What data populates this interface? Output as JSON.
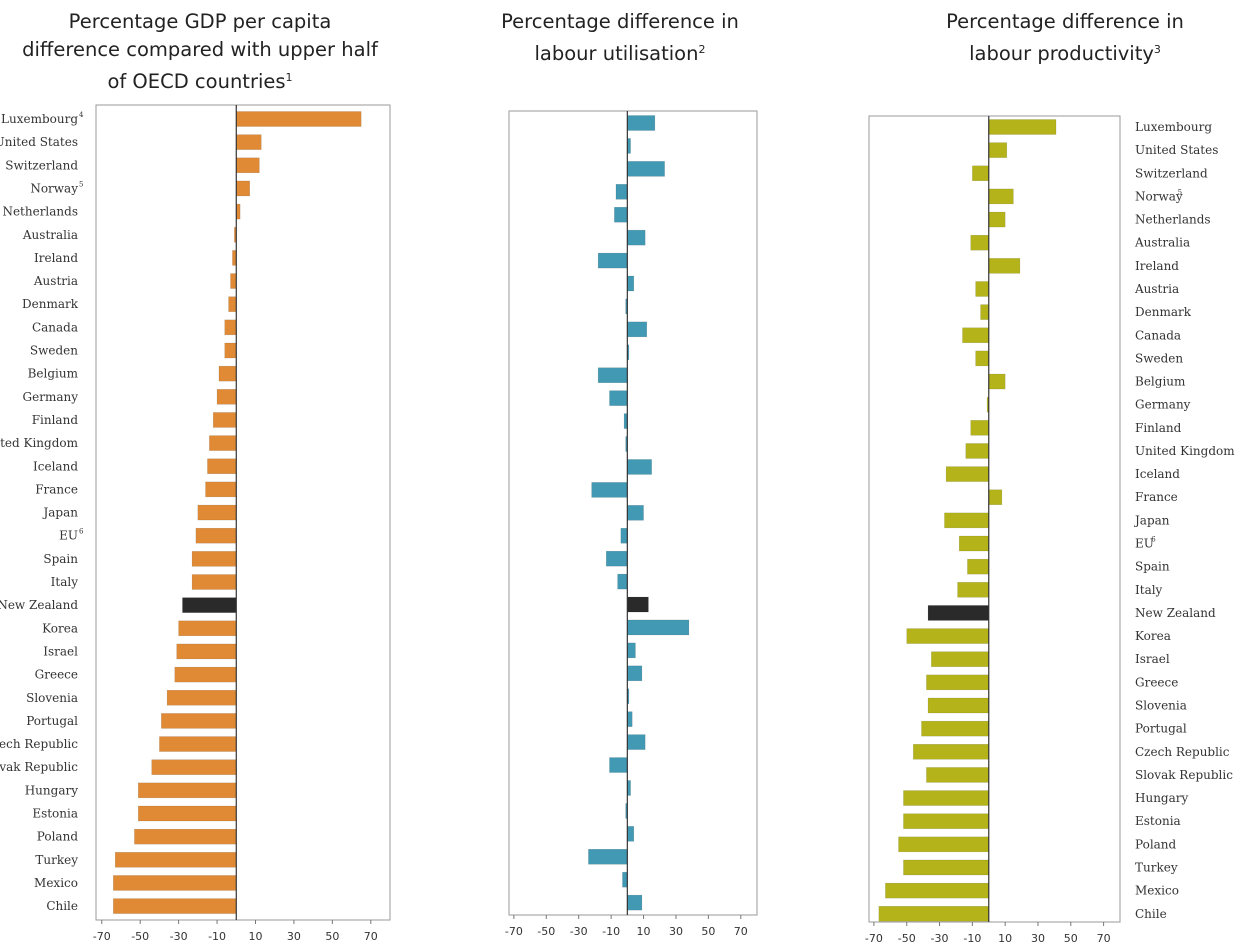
{
  "chart_data": [
    {
      "type": "bar",
      "title": "Percentage GDP per capita difference compared with upper half of OECD countries",
      "title_lines": [
        "Percentage GDP per capita",
        "difference compared with upper half",
        "of OECD countries"
      ],
      "title_note": "1",
      "categories": [
        "Luxembourg",
        "United States",
        "Switzerland",
        "Norway",
        "Netherlands",
        "Australia",
        "Ireland",
        "Austria",
        "Denmark",
        "Canada",
        "Sweden",
        "Belgium",
        "Germany",
        "Finland",
        "United Kingdom",
        "Iceland",
        "France",
        "Japan",
        "EU",
        "Spain",
        "Italy",
        "New Zealand",
        "Korea",
        "Israel",
        "Greece",
        "Slovenia",
        "Portugal",
        "Czech Republic",
        "Slovak Republic",
        "Hungary",
        "Estonia",
        "Poland",
        "Turkey",
        "Mexico",
        "Chile"
      ],
      "category_notes": {
        "Luxembourg": "4",
        "Norway": "5",
        "EU": "6"
      },
      "values": [
        65,
        13,
        12,
        7,
        2,
        -1,
        -2,
        -3,
        -4,
        -6,
        -6,
        -9,
        -10,
        -12,
        -14,
        -15,
        -16,
        -20,
        -21,
        -23,
        -23,
        -28,
        -30,
        -31,
        -32,
        -36,
        -39,
        -40,
        -44,
        -51,
        -51,
        -53,
        -63,
        -64,
        -64
      ],
      "highlight": "New Zealand",
      "xticks": [
        -70,
        -50,
        -30,
        -10,
        10,
        30,
        50,
        70
      ],
      "xlim": [
        -73,
        80
      ],
      "color": "#e08a35",
      "highlight_color": "#2a2a2a"
    },
    {
      "type": "bar",
      "title": "Percentage difference in labour utilisation",
      "title_lines": [
        "Percentage difference in",
        "labour utilisation"
      ],
      "title_note": "2",
      "categories": [
        "Luxembourg",
        "United States",
        "Switzerland",
        "Norway",
        "Netherlands",
        "Australia",
        "Ireland",
        "Austria",
        "Denmark",
        "Canada",
        "Sweden",
        "Belgium",
        "Germany",
        "Finland",
        "United Kingdom",
        "Iceland",
        "France",
        "Japan",
        "EU",
        "Spain",
        "Italy",
        "New Zealand",
        "Korea",
        "Israel",
        "Greece",
        "Slovenia",
        "Portugal",
        "Czech Republic",
        "Slovak Republic",
        "Hungary",
        "Estonia",
        "Poland",
        "Turkey",
        "Mexico",
        "Chile"
      ],
      "values": [
        17,
        2,
        23,
        -7,
        -8,
        11,
        -18,
        4,
        -1,
        12,
        1,
        -18,
        -11,
        -2,
        -1,
        15,
        -22,
        10,
        -4,
        -13,
        -6,
        13,
        38,
        5,
        9,
        1,
        3,
        11,
        -11,
        2,
        -1,
        4,
        -24,
        -3,
        9
      ],
      "highlight": "New Zealand",
      "xticks": [
        -70,
        -50,
        -30,
        -10,
        10,
        30,
        50,
        70
      ],
      "xlim": [
        -73,
        80
      ],
      "color": "#4199b4",
      "highlight_color": "#2a2a2a"
    },
    {
      "type": "bar",
      "title": "Percentage difference in labour productivity",
      "title_lines": [
        "Percentage difference in",
        "labour productivity"
      ],
      "title_note": "3",
      "categories": [
        "Luxembourg",
        "United States",
        "Switzerland",
        "Norway",
        "Netherlands",
        "Australia",
        "Ireland",
        "Austria",
        "Denmark",
        "Canada",
        "Sweden",
        "Belgium",
        "Germany",
        "Finland",
        "United Kingdom",
        "Iceland",
        "France",
        "Japan",
        "EU",
        "Spain",
        "Italy",
        "New Zealand",
        "Korea",
        "Israel",
        "Greece",
        "Slovenia",
        "Portugal",
        "Czech Republic",
        "Slovak Republic",
        "Hungary",
        "Estonia",
        "Poland",
        "Turkey",
        "Mexico",
        "Chile"
      ],
      "category_notes": {
        "Norway": "5",
        "EU": "6"
      },
      "values": [
        41,
        11,
        -10,
        15,
        10,
        -11,
        19,
        -8,
        -5,
        -16,
        -8,
        10,
        -1,
        -11,
        -14,
        -26,
        8,
        -27,
        -18,
        -13,
        -19,
        -37,
        -50,
        -35,
        -38,
        -37,
        -41,
        -46,
        -38,
        -52,
        -52,
        -55,
        -52,
        -63,
        -67
      ],
      "highlight": "New Zealand",
      "xticks": [
        -70,
        -50,
        -30,
        -10,
        10,
        30,
        50,
        70
      ],
      "xlim": [
        -73,
        80
      ],
      "color": "#b4b41a",
      "highlight_color": "#2a2a2a"
    }
  ]
}
